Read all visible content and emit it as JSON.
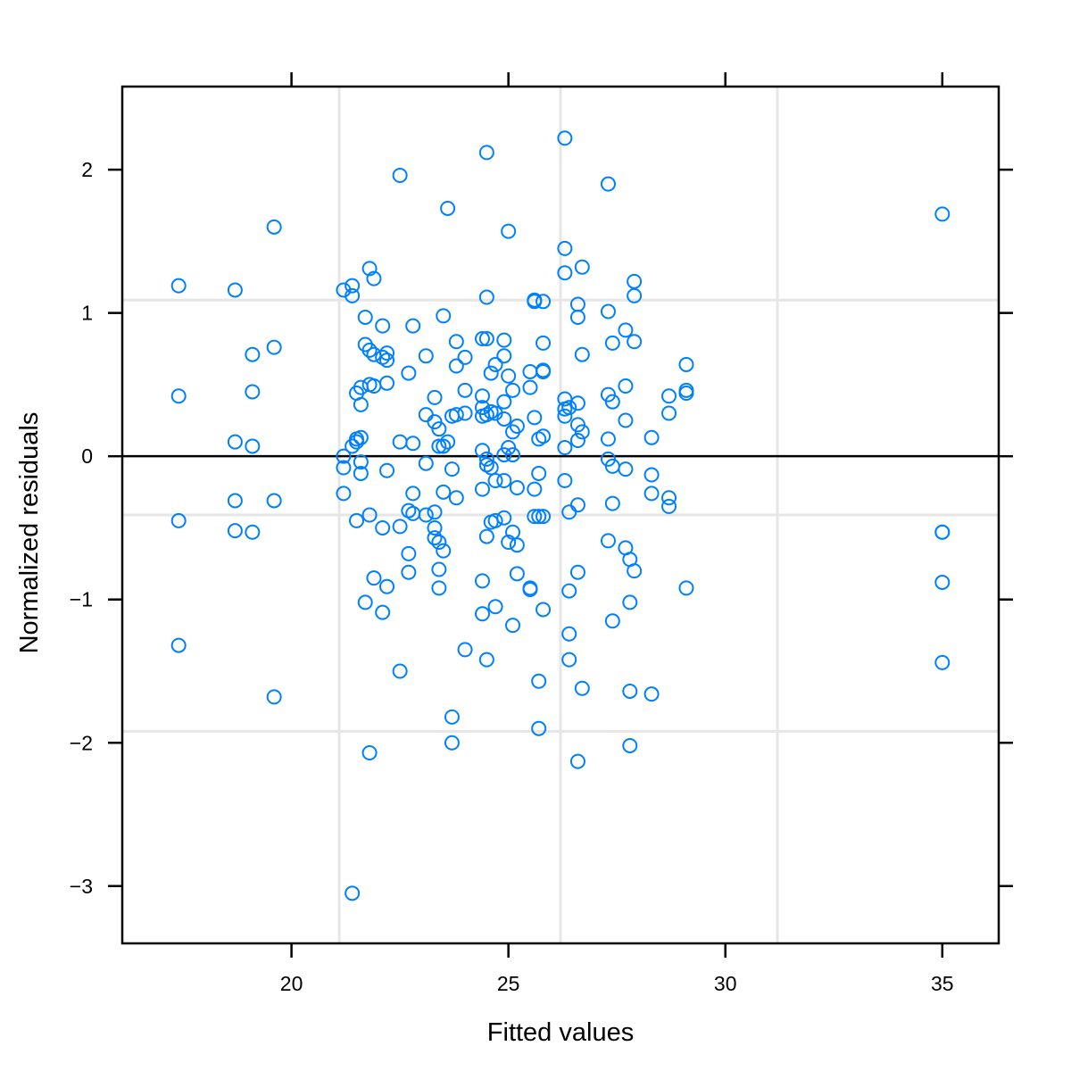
{
  "chart_data": {
    "type": "scatter",
    "title": "",
    "xlabel": "Fitted values",
    "ylabel": "Normalized residuals",
    "xlim": [
      16.1,
      36.3
    ],
    "ylim": [
      -3.4,
      2.58
    ],
    "x_ticks": [
      20,
      25,
      30,
      35
    ],
    "x_tick_labels": [
      "20",
      "25",
      "30",
      "35"
    ],
    "y_ticks": [
      -3,
      -2,
      -1,
      0,
      1,
      2
    ],
    "y_tick_labels": [
      "−3",
      "−2",
      "−1",
      "0",
      "1",
      "2"
    ],
    "grid_x": [
      21.1,
      26.2,
      31.2
    ],
    "grid_y": [
      1.09,
      -0.41,
      -1.92
    ],
    "reference_line_y": 0,
    "colors": {
      "points": "#0080ff",
      "grid": "#e6e6e6",
      "axis": "#000000",
      "reference_line": "#000000"
    },
    "series": [
      {
        "x": [
          17.4,
          17.4,
          17.4,
          17.4,
          18.7,
          18.7,
          18.7,
          18.7,
          19.1,
          19.1,
          19.1,
          19.1,
          19.6,
          19.6,
          19.6,
          19.6,
          21.2,
          21.2,
          21.2,
          21.2,
          21.4,
          21.4,
          21.4,
          21.4,
          21.5,
          21.5,
          21.5,
          21.5,
          21.6,
          21.6,
          21.6,
          21.6,
          21.6,
          21.7,
          21.7,
          21.7,
          21.8,
          21.8,
          21.8,
          21.8,
          21.8,
          21.9,
          21.9,
          21.9,
          21.9,
          22.1,
          22.1,
          22.1,
          22.1,
          22.2,
          22.2,
          22.2,
          22.2,
          22.2,
          22.5,
          22.5,
          22.5,
          22.5,
          22.7,
          22.7,
          22.7,
          22.7,
          22.8,
          22.8,
          22.8,
          22.8,
          23.1,
          23.1,
          23.1,
          23.1,
          23.3,
          23.3,
          23.3,
          23.3,
          23.3,
          23.4,
          23.4,
          23.4,
          23.4,
          23.4,
          23.5,
          23.5,
          23.5,
          23.5,
          23.6,
          23.6,
          23.7,
          23.7,
          23.7,
          23.7,
          23.8,
          23.8,
          23.8,
          23.8,
          24.0,
          24.0,
          24.0,
          24.0,
          24.4,
          24.4,
          24.4,
          24.4,
          24.4,
          24.4,
          24.4,
          24.4,
          24.5,
          24.5,
          24.5,
          24.5,
          24.5,
          24.5,
          24.5,
          24.5,
          24.6,
          24.6,
          24.6,
          24.6,
          24.7,
          24.7,
          24.7,
          24.7,
          24.7,
          24.9,
          24.9,
          24.9,
          24.9,
          24.9,
          24.9,
          24.9,
          25.0,
          25.0,
          25.0,
          25.0,
          25.1,
          25.1,
          25.1,
          25.1,
          25.1,
          25.2,
          25.2,
          25.2,
          25.2,
          25.5,
          25.5,
          25.5,
          25.5,
          25.6,
          25.6,
          25.6,
          25.6,
          25.6,
          25.7,
          25.7,
          25.7,
          25.7,
          25.7,
          25.8,
          25.8,
          25.8,
          25.8,
          25.8,
          25.8,
          25.8,
          26.3,
          26.3,
          26.3,
          26.3,
          26.3,
          26.3,
          26.3,
          26.3,
          26.4,
          26.4,
          26.4,
          26.4,
          26.4,
          26.6,
          26.6,
          26.6,
          26.6,
          26.6,
          26.6,
          26.6,
          26.6,
          26.7,
          26.7,
          26.7,
          26.7,
          27.3,
          27.3,
          27.3,
          27.3,
          27.3,
          27.3,
          27.4,
          27.4,
          27.4,
          27.4,
          27.4,
          27.7,
          27.7,
          27.7,
          27.7,
          27.7,
          27.8,
          27.8,
          27.8,
          27.8,
          27.9,
          27.9,
          27.9,
          27.9,
          28.3,
          28.3,
          28.3,
          28.3,
          28.7,
          28.7,
          28.7,
          28.7,
          29.1,
          29.1,
          29.1,
          29.1,
          35.0,
          35.0,
          35.0,
          35.0,
          35.0
        ],
        "y": [
          1.19,
          0.42,
          -0.45,
          -1.32,
          1.16,
          0.1,
          -0.31,
          -0.52,
          0.71,
          0.45,
          0.07,
          -0.53,
          1.6,
          0.76,
          -0.31,
          -1.68,
          1.16,
          0.0,
          -0.08,
          -0.26,
          1.19,
          1.12,
          0.07,
          -3.05,
          0.12,
          0.44,
          0.1,
          -0.45,
          0.48,
          0.36,
          -0.04,
          -0.12,
          0.13,
          0.97,
          0.78,
          -1.02,
          1.31,
          0.74,
          0.5,
          -0.41,
          -2.07,
          1.24,
          0.71,
          0.49,
          -0.85,
          0.91,
          0.69,
          -0.5,
          -1.09,
          0.72,
          0.67,
          0.51,
          -0.91,
          -0.1,
          1.96,
          0.1,
          -0.49,
          -1.5,
          0.58,
          -0.38,
          -0.68,
          -0.81,
          0.91,
          0.09,
          -0.26,
          -0.4,
          0.7,
          0.29,
          -0.05,
          -0.41,
          0.41,
          0.24,
          -0.39,
          -0.5,
          -0.57,
          0.19,
          -0.79,
          -0.92,
          0.07,
          -0.6,
          0.98,
          0.07,
          -0.25,
          -0.66,
          1.73,
          0.1,
          0.28,
          -0.09,
          -1.82,
          -2.0,
          0.8,
          0.63,
          0.29,
          -0.29,
          0.69,
          0.46,
          0.3,
          -1.35,
          0.82,
          0.42,
          0.34,
          0.28,
          0.04,
          -0.23,
          -0.87,
          -1.1,
          2.12,
          1.11,
          0.82,
          0.29,
          -0.02,
          -0.06,
          -0.56,
          -1.42,
          0.58,
          0.31,
          -0.08,
          -0.46,
          0.64,
          0.3,
          -0.17,
          -0.45,
          -1.05,
          0.81,
          0.7,
          0.38,
          0.26,
          0.01,
          -0.17,
          -0.43,
          1.57,
          0.56,
          0.06,
          -0.6,
          0.17,
          0.01,
          -0.53,
          -1.18,
          0.46,
          0.21,
          -0.22,
          -0.82,
          -0.62,
          0.59,
          0.48,
          -0.93,
          -0.92,
          1.09,
          0.27,
          -0.23,
          -0.42,
          1.08,
          0.12,
          -0.12,
          -0.42,
          -1.57,
          -1.9,
          1.08,
          0.6,
          0.59,
          0.79,
          0.14,
          -1.07,
          -0.42,
          2.22,
          1.45,
          1.28,
          0.4,
          0.33,
          0.28,
          0.06,
          -0.17,
          -0.94,
          -1.42,
          -1.24,
          -0.39,
          0.34,
          1.06,
          0.97,
          0.37,
          0.22,
          0.11,
          -0.34,
          -0.81,
          -2.13,
          1.32,
          0.71,
          0.17,
          -1.62,
          1.9,
          1.01,
          0.43,
          0.12,
          -0.02,
          -0.59,
          0.79,
          0.38,
          -0.07,
          -0.33,
          -1.15,
          0.88,
          0.49,
          0.25,
          -0.09,
          -0.64,
          -0.72,
          -1.02,
          -2.02,
          -1.64,
          1.22,
          1.12,
          0.8,
          -0.8,
          0.13,
          -0.13,
          -0.26,
          -1.66,
          0.42,
          0.3,
          -0.29,
          -0.35,
          0.64,
          0.46,
          0.44,
          -0.92,
          1.69,
          -0.53,
          -0.88,
          -1.44,
          -0.53
        ]
      }
    ]
  }
}
